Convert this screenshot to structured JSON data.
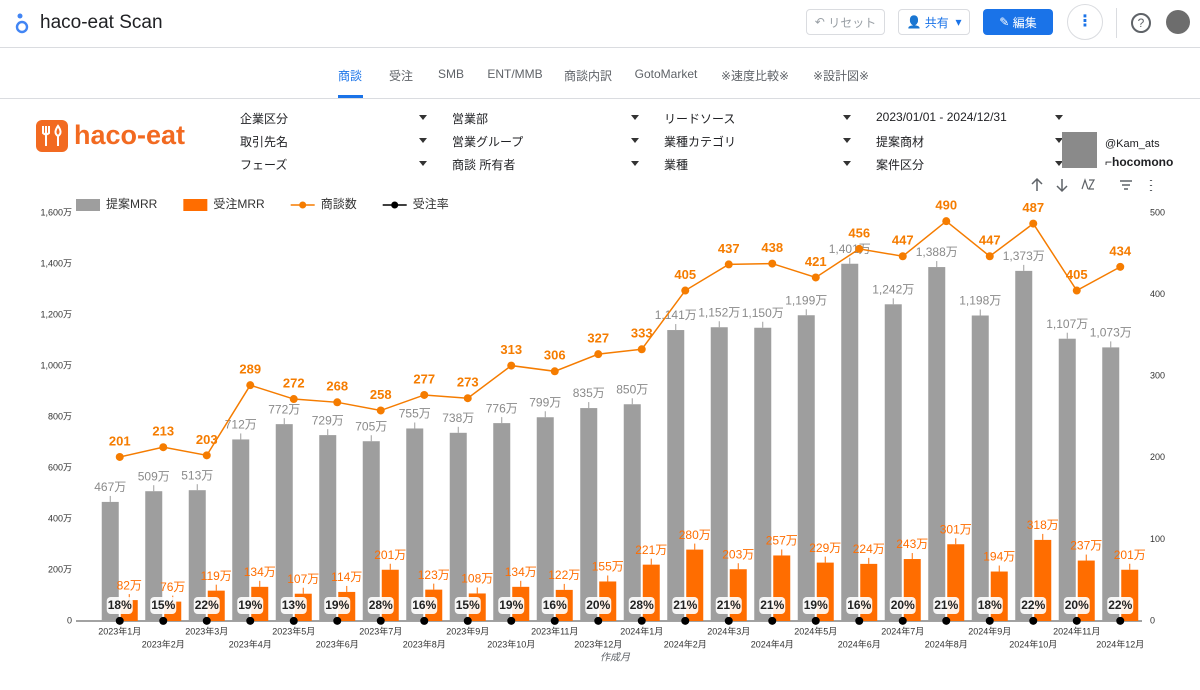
{
  "header": {
    "title": "haco-eat Scan",
    "buttons": [
      "リセット",
      "共有",
      "編集"
    ]
  },
  "tabs": [
    "商談",
    "受注",
    "SMB",
    "ENT/MMB",
    "商談内訳",
    "GotoMarket",
    "※速度比較※",
    "※設計図※"
  ],
  "logo": "haco-eat",
  "filters": [
    "企業区分",
    "営業部",
    "リードソース",
    "2023/01/01 - 2024/12/31",
    "取引先名",
    "営業グループ",
    "業種カテゴリ",
    "提案商材",
    "フェーズ",
    "商談 所有者",
    "業種",
    "案件区分"
  ],
  "profile": {
    "handle": "@Kam_ats",
    "brand": "hocomono"
  },
  "chart_data": {
    "type": "combo",
    "x_label": "作成月",
    "categories": [
      "2023年1月",
      "2023年2月",
      "2023年3月",
      "2023年4月",
      "2023年5月",
      "2023年6月",
      "2023年7月",
      "2023年8月",
      "2023年9月",
      "2023年10月",
      "2023年11月",
      "2023年12月",
      "2024年1月",
      "2024年2月",
      "2024年3月",
      "2024年4月",
      "2024年5月",
      "2024年6月",
      "2024年7月",
      "2024年8月",
      "2024年9月",
      "2024年10月",
      "2024年11月",
      "2024年12月"
    ],
    "ylim": [
      0,
      1600
    ],
    "yticks": [
      0,
      {
        "value": 200,
        "label": "200万"
      },
      {
        "value": 400,
        "label": "400万"
      },
      {
        "value": 600,
        "label": "600万"
      },
      {
        "value": 800,
        "label": "800万"
      },
      {
        "value": 1000,
        "label": "1,000万"
      },
      {
        "value": 1200,
        "label": "1,200万"
      },
      {
        "value": 1400,
        "label": "1,400万"
      },
      {
        "value": 1600,
        "label": "1,600万"
      }
    ],
    "y2lim": [
      0,
      500
    ],
    "y2ticks": [
      0,
      100,
      200,
      300,
      400,
      500
    ],
    "grid": false,
    "legend": "top-left",
    "series": [
      {
        "name": "提案MRR",
        "type": "bar",
        "color": "#9e9e9e",
        "values": [
          467,
          509,
          513,
          712,
          772,
          729,
          705,
          755,
          738,
          776,
          799,
          835,
          850,
          1141,
          1152,
          1150,
          1199,
          1401,
          1242,
          1388,
          1198,
          1373,
          1107,
          1073
        ],
        "value_labels": [
          "467万",
          "509万",
          "513万",
          "712万",
          "772万",
          "729万",
          "705万",
          "755万",
          "738万",
          "776万",
          "799万",
          "835万",
          "850万",
          "1,141万",
          "1,152万",
          "1,150万",
          "1,199万",
          "1,401万",
          "1,242万",
          "1,388万",
          "1,198万",
          "1,373万",
          "1,107万",
          "1,073万"
        ]
      },
      {
        "name": "受注MRR",
        "type": "bar",
        "color": "#ff6d00",
        "values": [
          82,
          76,
          119,
          134,
          107,
          114,
          201,
          123,
          108,
          134,
          122,
          155,
          221,
          280,
          203,
          257,
          229,
          224,
          243,
          301,
          194,
          318,
          237,
          201
        ],
        "value_labels": [
          "82万",
          "76万",
          "119万",
          "134万",
          "107万",
          "114万",
          "201万",
          "123万",
          "108万",
          "134万",
          "122万",
          "155万",
          "221万",
          "280万",
          "203万",
          "257万",
          "229万",
          "224万",
          "243万",
          "301万",
          "194万",
          "318万",
          "237万",
          "201万"
        ]
      },
      {
        "name": "商談数",
        "type": "line",
        "axis": "y2",
        "color": "#f57c00",
        "values": [
          201,
          213,
          203,
          289,
          272,
          268,
          258,
          277,
          273,
          313,
          306,
          327,
          333,
          405,
          437,
          438,
          421,
          456,
          447,
          490,
          447,
          487,
          405,
          434
        ]
      },
      {
        "name": "受注率",
        "type": "line",
        "axis": "y2",
        "color": "#000000",
        "values": [
          0.18,
          0.15,
          0.22,
          0.19,
          0.13,
          0.19,
          0.28,
          0.16,
          0.15,
          0.19,
          0.16,
          0.2,
          0.28,
          0.21,
          0.21,
          0.21,
          0.19,
          0.16,
          0.2,
          0.21,
          0.18,
          0.22,
          0.2,
          0.22
        ],
        "value_labels": [
          "18%",
          "15%",
          "22%",
          "19%",
          "13%",
          "19%",
          "28%",
          "16%",
          "15%",
          "19%",
          "16%",
          "20%",
          "28%",
          "21%",
          "21%",
          "21%",
          "19%",
          "16%",
          "20%",
          "21%",
          "18%",
          "22%",
          "20%",
          "22%"
        ]
      }
    ]
  }
}
